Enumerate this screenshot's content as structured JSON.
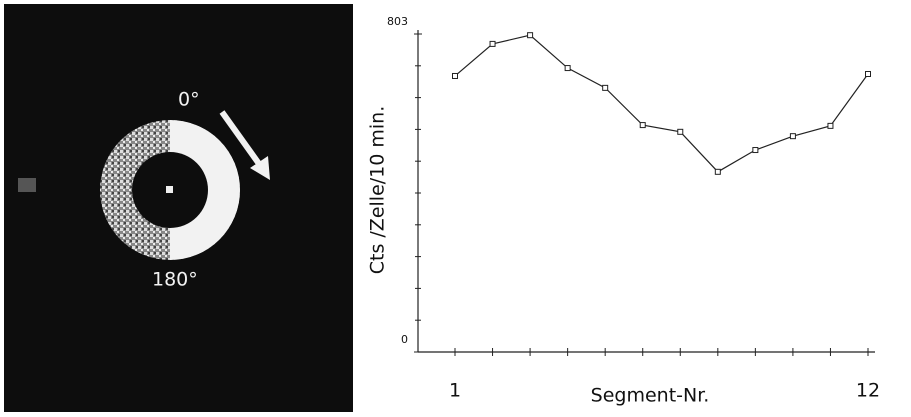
{
  "chart_data": {
    "type": "line",
    "annotations": [
      "0°",
      "180°"
    ],
    "ylabel": "Cts  /Zelle/10 min.",
    "xlabel": "Segment-Nr.",
    "categories": [
      "1",
      null,
      null,
      null,
      null,
      null,
      null,
      null,
      null,
      null,
      null,
      "12"
    ],
    "values": [
      697,
      778,
      800,
      717,
      667,
      573,
      556,
      455,
      510,
      545,
      571,
      702
    ],
    "color": "#222222",
    "ylim": [
      0,
      803
    ],
    "yticks": [
      0,
      803
    ]
  }
}
